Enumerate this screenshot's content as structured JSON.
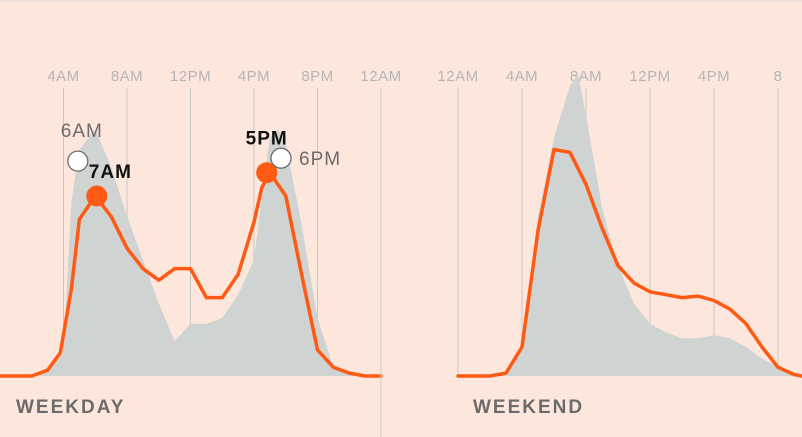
{
  "chart_data": [
    {
      "type": "area",
      "label": "WEEKDAY",
      "x_ticks": [
        "4AM",
        "8AM",
        "12PM",
        "4PM",
        "8PM",
        "12AM"
      ],
      "x_tick_hours": [
        4,
        8,
        12,
        16,
        20,
        24
      ],
      "xlim": [
        0,
        24
      ],
      "series": [
        {
          "style": "filled-area",
          "color": "#cfd3d2",
          "x": [
            0,
            2,
            3,
            4,
            4.5,
            5,
            6,
            7,
            8,
            9,
            10,
            11,
            12,
            13,
            14,
            15,
            16,
            16.5,
            17,
            17.5,
            18,
            19,
            20,
            21,
            22,
            23,
            24
          ],
          "y": [
            0,
            0,
            2,
            8,
            60,
            78,
            85,
            72,
            55,
            40,
            25,
            12,
            18,
            18,
            20,
            28,
            40,
            62,
            82,
            85,
            80,
            52,
            20,
            3,
            1,
            0,
            0
          ]
        },
        {
          "style": "line",
          "color": "#ff5a14",
          "x": [
            0,
            1,
            2,
            3,
            3.8,
            4.5,
            5,
            6,
            7,
            8,
            9,
            10,
            11,
            12,
            13,
            14,
            15,
            16,
            16.5,
            17,
            18,
            19,
            20,
            21,
            22,
            23,
            24
          ],
          "y": [
            0,
            0,
            0,
            2,
            8,
            30,
            54,
            62,
            55,
            44,
            37,
            33,
            37,
            37,
            27,
            27,
            35,
            53,
            65,
            70,
            62,
            35,
            9,
            3,
            1,
            0,
            0
          ]
        }
      ],
      "peaks": [
        {
          "label": "6AM",
          "kind": "earlier",
          "x": 4.9,
          "y": 74
        },
        {
          "label": "7AM",
          "kind": "current",
          "x": 6.1,
          "y": 62
        },
        {
          "label": "5PM",
          "kind": "current",
          "x": 16.8,
          "y": 70
        },
        {
          "label": "6PM",
          "kind": "earlier",
          "x": 17.7,
          "y": 75
        }
      ]
    },
    {
      "type": "area",
      "label": "WEEKEND",
      "x_ticks": [
        "12AM",
        "4AM",
        "8AM",
        "12PM",
        "4PM",
        "8"
      ],
      "x_tick_hours": [
        0,
        4,
        8,
        12,
        16,
        20
      ],
      "xlim": [
        0,
        21.5
      ],
      "series": [
        {
          "style": "filled-area",
          "color": "#cfd3d2",
          "x": [
            0,
            2,
            3,
            4,
            5,
            6,
            7,
            7.5,
            8,
            9,
            10,
            11,
            12,
            13,
            14,
            15,
            16,
            17,
            18,
            19,
            20,
            21,
            21.5
          ],
          "y": [
            0,
            0,
            1,
            10,
            55,
            82,
            100,
            104,
            90,
            58,
            38,
            25,
            18,
            15,
            13,
            13,
            14,
            13,
            10,
            6,
            3,
            1,
            0
          ]
        },
        {
          "style": "line",
          "color": "#ff5a14",
          "x": [
            0,
            1,
            2,
            3,
            4,
            5,
            6,
            7,
            8,
            9,
            10,
            11,
            12,
            13,
            14,
            15,
            16,
            17,
            18,
            19,
            20,
            21,
            21.5
          ],
          "y": [
            0,
            0,
            0,
            1,
            10,
            50,
            78,
            77,
            66,
            51,
            38,
            32,
            29,
            28,
            27,
            27.5,
            26,
            23,
            18,
            10,
            3,
            0.5,
            0
          ]
        }
      ]
    }
  ]
}
